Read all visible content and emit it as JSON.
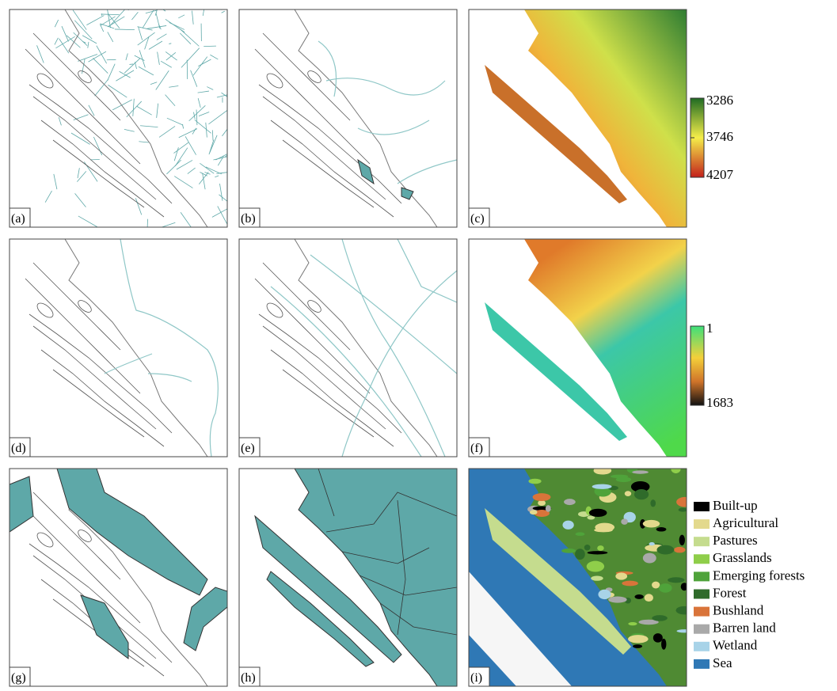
{
  "panels": [
    {
      "label": "(a)"
    },
    {
      "label": "(b)"
    },
    {
      "label": "(c)"
    },
    {
      "label": "(d)"
    },
    {
      "label": "(e)"
    },
    {
      "label": "(f)"
    },
    {
      "label": "(g)"
    },
    {
      "label": "(h)"
    },
    {
      "label": "(i)"
    }
  ],
  "colorbars": [
    {
      "labels": [
        3286,
        3746,
        4207
      ]
    },
    {
      "labels": [
        1,
        1683
      ]
    }
  ],
  "legend": [
    {
      "label": "Built-up",
      "color": "#000000"
    },
    {
      "label": "Agricultural",
      "color": "#e3d98d"
    },
    {
      "label": "Pastures",
      "color": "#c5dc8e"
    },
    {
      "label": "Grasslands",
      "color": "#8fce4a"
    },
    {
      "label": "Emerging forests",
      "color": "#4fa33a"
    },
    {
      "label": "Forest",
      "color": "#2f6b2a"
    },
    {
      "label": "Bushland",
      "color": "#d9743a"
    },
    {
      "label": "Barren land",
      "color": "#a9a9a9"
    },
    {
      "label": "Wetland",
      "color": "#a8d3e8"
    },
    {
      "label": "Sea",
      "color": "#2f78b5"
    }
  ]
}
